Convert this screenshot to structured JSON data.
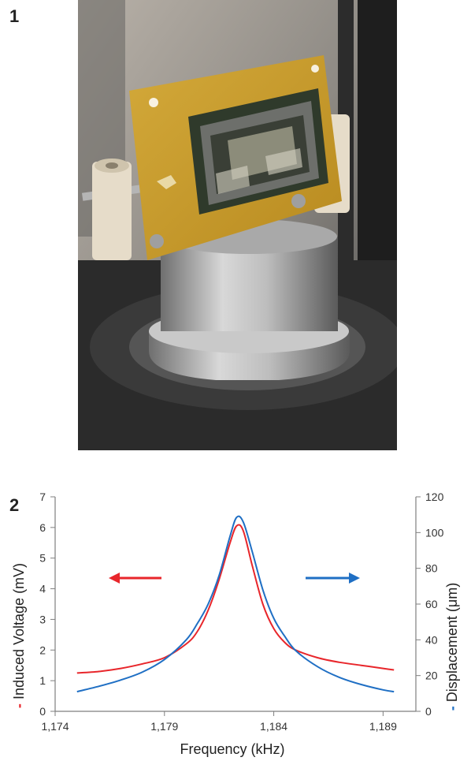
{
  "panel1": {
    "label": "1"
  },
  "panel2": {
    "label": "2"
  },
  "colors": {
    "voltage": "#e8262b",
    "displacement": "#1f6fc4",
    "axis": "#7f7f7f"
  },
  "chart_data": {
    "type": "line",
    "title": "",
    "xlabel": "Frequency (kHz)",
    "ylabel_left": "Induced Voltage (mV)",
    "ylabel_right": "Displacement (μm)",
    "ylabel_left_marker": "-",
    "ylabel_right_marker": "-",
    "xlim": [
      1174,
      1190.5
    ],
    "xticks": [
      1174,
      1179,
      1184,
      1189
    ],
    "xtick_labels": [
      "1,174",
      "1,179",
      "1,184",
      "1,189"
    ],
    "ylim_left": [
      0,
      7
    ],
    "yticks_left": [
      0,
      1,
      2,
      3,
      4,
      5,
      6,
      7
    ],
    "yticks_left_labels": [
      "0",
      "1",
      "2",
      "3",
      "4",
      "5",
      "6",
      "7"
    ],
    "ylim_right": [
      0,
      120
    ],
    "yticks_right": [
      0,
      20,
      40,
      60,
      80,
      100,
      120
    ],
    "yticks_right_labels": [
      "0",
      "20",
      "40",
      "60",
      "80",
      "100",
      "120"
    ],
    "grid": false,
    "annotations": [
      {
        "type": "arrow",
        "direction": "left",
        "meaning": "voltage series uses left axis"
      },
      {
        "type": "arrow",
        "direction": "right",
        "meaning": "displacement series uses right axis"
      }
    ],
    "series": [
      {
        "axis": "left",
        "color": "#e8262b",
        "x": [
          1175,
          1176,
          1177,
          1178,
          1179,
          1180,
          1180.5,
          1181,
          1181.5,
          1182,
          1182.3,
          1182.6,
          1183,
          1183.5,
          1184,
          1184.5,
          1185,
          1186,
          1187,
          1188,
          1189,
          1189.5
        ],
        "y": [
          1.25,
          1.3,
          1.4,
          1.55,
          1.75,
          2.2,
          2.6,
          3.3,
          4.3,
          5.5,
          6.05,
          5.9,
          4.8,
          3.5,
          2.7,
          2.25,
          2.0,
          1.75,
          1.6,
          1.5,
          1.4,
          1.35
        ]
      },
      {
        "axis": "right",
        "color": "#1f6fc4",
        "x": [
          1175,
          1176,
          1177,
          1178,
          1179,
          1180,
          1180.5,
          1181,
          1181.5,
          1182,
          1182.3,
          1182.6,
          1183,
          1183.5,
          1184,
          1184.5,
          1185,
          1186,
          1187,
          1188,
          1189,
          1189.5
        ],
        "y": [
          11,
          14,
          17.5,
          22,
          29,
          40,
          49,
          60,
          76,
          98,
          108.5,
          106,
          90,
          68,
          52,
          42,
          34,
          25,
          19,
          15,
          12,
          11
        ]
      }
    ]
  }
}
